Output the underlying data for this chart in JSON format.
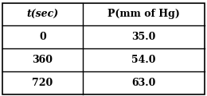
{
  "col1_header": "t(sec)",
  "col2_header": "P(mm of Hg)",
  "rows": [
    [
      "0",
      "35.0"
    ],
    [
      "360",
      "54.0"
    ],
    [
      "720",
      "63.0"
    ]
  ],
  "bg_color": "#ffffff",
  "border_color": "#000000",
  "header_fontsize": 9,
  "cell_fontsize": 9,
  "fig_width": 2.6,
  "fig_height": 1.21,
  "dpi": 100
}
